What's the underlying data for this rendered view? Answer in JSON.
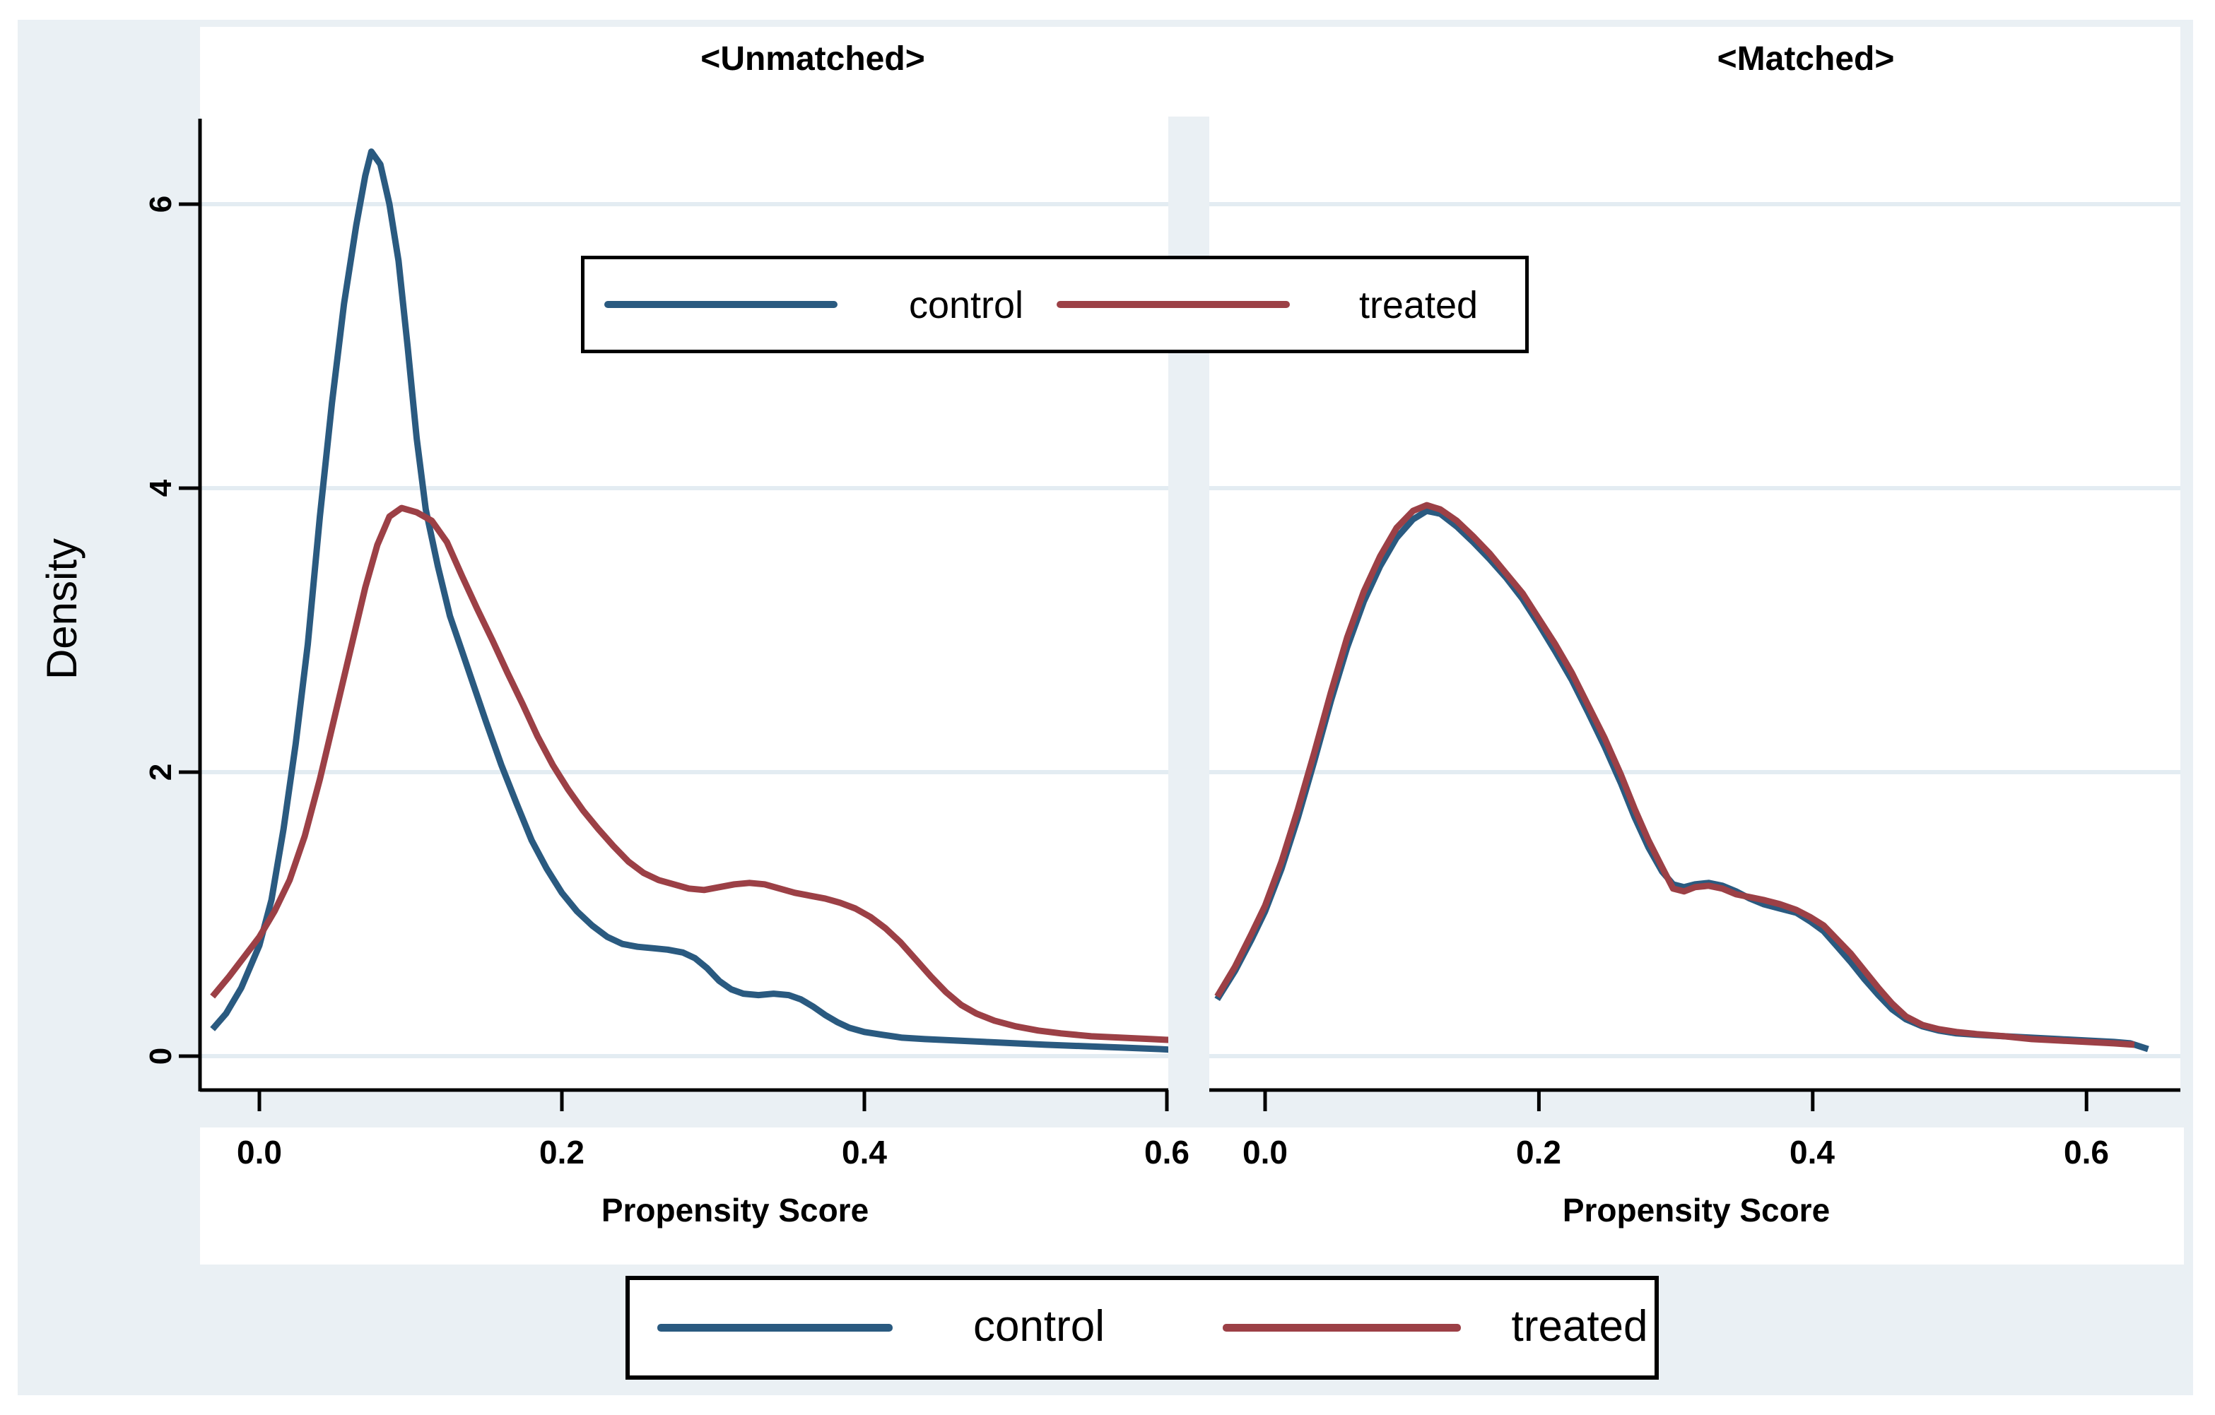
{
  "figure": {
    "ylabel": "Density",
    "y_ticks": [
      "0",
      "2",
      "4",
      "6"
    ],
    "x_ticks_left": [
      "0.0",
      "0.2",
      "0.4",
      "0.6"
    ],
    "x_ticks_right": [
      "0.0",
      "0.2",
      "0.4",
      "0.6"
    ],
    "colors": {
      "background": "#eaf0f4",
      "plot_background": "#ffffff",
      "gridline": "#e3ecf2",
      "axis": "#000000",
      "control": "#2a5a80",
      "treated": "#9c4046"
    },
    "legend_inner": {
      "control_label": "control",
      "treated_label": "treated"
    },
    "legend_bottom": {
      "control_label": "control",
      "treated_label": "treated"
    }
  },
  "chart_data": [
    {
      "type": "line",
      "title": "<Unmatched>",
      "xlabel": "Propensity Score",
      "ylabel": "Density",
      "xlim": [
        -0.04,
        0.6
      ],
      "ylim": [
        0,
        6.6
      ],
      "x_ticks": [
        0.0,
        0.2,
        0.4,
        0.6
      ],
      "y_ticks": [
        0,
        2,
        4,
        6
      ],
      "grid": true,
      "legend_position": "inner-top and bottom-center",
      "series": [
        {
          "name": "control",
          "color": "#2a5a80",
          "points": [
            [
              -0.031,
              0.19
            ],
            [
              -0.022,
              0.3
            ],
            [
              -0.012,
              0.48
            ],
            [
              0,
              0.78
            ],
            [
              0.008,
              1.1
            ],
            [
              0.016,
              1.6
            ],
            [
              0.024,
              2.2
            ],
            [
              0.032,
              2.9
            ],
            [
              0.04,
              3.8
            ],
            [
              0.048,
              4.6
            ],
            [
              0.056,
              5.3
            ],
            [
              0.064,
              5.85
            ],
            [
              0.07,
              6.2
            ],
            [
              0.074,
              6.37
            ],
            [
              0.08,
              6.28
            ],
            [
              0.086,
              6.0
            ],
            [
              0.092,
              5.6
            ],
            [
              0.098,
              5.0
            ],
            [
              0.104,
              4.35
            ],
            [
              0.11,
              3.85
            ],
            [
              0.118,
              3.45
            ],
            [
              0.126,
              3.1
            ],
            [
              0.134,
              2.85
            ],
            [
              0.142,
              2.6
            ],
            [
              0.15,
              2.35
            ],
            [
              0.16,
              2.05
            ],
            [
              0.17,
              1.78
            ],
            [
              0.18,
              1.52
            ],
            [
              0.19,
              1.32
            ],
            [
              0.2,
              1.15
            ],
            [
              0.21,
              1.02
            ],
            [
              0.22,
              0.92
            ],
            [
              0.23,
              0.84
            ],
            [
              0.24,
              0.79
            ],
            [
              0.25,
              0.77
            ],
            [
              0.26,
              0.76
            ],
            [
              0.27,
              0.75
            ],
            [
              0.28,
              0.73
            ],
            [
              0.288,
              0.69
            ],
            [
              0.296,
              0.62
            ],
            [
              0.304,
              0.53
            ],
            [
              0.312,
              0.47
            ],
            [
              0.32,
              0.44
            ],
            [
              0.33,
              0.43
            ],
            [
              0.34,
              0.44
            ],
            [
              0.35,
              0.43
            ],
            [
              0.358,
              0.4
            ],
            [
              0.366,
              0.35
            ],
            [
              0.374,
              0.29
            ],
            [
              0.382,
              0.24
            ],
            [
              0.39,
              0.2
            ],
            [
              0.4,
              0.17
            ],
            [
              0.412,
              0.15
            ],
            [
              0.425,
              0.13
            ],
            [
              0.44,
              0.12
            ],
            [
              0.46,
              0.11
            ],
            [
              0.48,
              0.1
            ],
            [
              0.5,
              0.09
            ],
            [
              0.52,
              0.08
            ],
            [
              0.545,
              0.07
            ],
            [
              0.57,
              0.06
            ],
            [
              0.595,
              0.05
            ],
            [
              0.612,
              0.04
            ]
          ]
        },
        {
          "name": "treated",
          "color": "#9c4046",
          "points": [
            [
              -0.031,
              0.42
            ],
            [
              -0.02,
              0.56
            ],
            [
              -0.01,
              0.7
            ],
            [
              0,
              0.84
            ],
            [
              0.01,
              1.02
            ],
            [
              0.02,
              1.24
            ],
            [
              0.03,
              1.55
            ],
            [
              0.04,
              1.95
            ],
            [
              0.05,
              2.4
            ],
            [
              0.06,
              2.85
            ],
            [
              0.07,
              3.3
            ],
            [
              0.078,
              3.6
            ],
            [
              0.086,
              3.8
            ],
            [
              0.094,
              3.86
            ],
            [
              0.104,
              3.83
            ],
            [
              0.114,
              3.77
            ],
            [
              0.124,
              3.62
            ],
            [
              0.134,
              3.38
            ],
            [
              0.144,
              3.15
            ],
            [
              0.154,
              2.93
            ],
            [
              0.164,
              2.7
            ],
            [
              0.174,
              2.48
            ],
            [
              0.184,
              2.25
            ],
            [
              0.194,
              2.05
            ],
            [
              0.204,
              1.88
            ],
            [
              0.214,
              1.73
            ],
            [
              0.224,
              1.6
            ],
            [
              0.234,
              1.48
            ],
            [
              0.244,
              1.37
            ],
            [
              0.254,
              1.29
            ],
            [
              0.264,
              1.24
            ],
            [
              0.274,
              1.21
            ],
            [
              0.284,
              1.18
            ],
            [
              0.294,
              1.17
            ],
            [
              0.304,
              1.19
            ],
            [
              0.314,
              1.21
            ],
            [
              0.324,
              1.22
            ],
            [
              0.334,
              1.21
            ],
            [
              0.344,
              1.18
            ],
            [
              0.354,
              1.15
            ],
            [
              0.364,
              1.13
            ],
            [
              0.374,
              1.11
            ],
            [
              0.384,
              1.08
            ],
            [
              0.394,
              1.04
            ],
            [
              0.404,
              0.98
            ],
            [
              0.414,
              0.9
            ],
            [
              0.424,
              0.8
            ],
            [
              0.434,
              0.68
            ],
            [
              0.444,
              0.56
            ],
            [
              0.454,
              0.45
            ],
            [
              0.464,
              0.36
            ],
            [
              0.474,
              0.3
            ],
            [
              0.486,
              0.25
            ],
            [
              0.5,
              0.21
            ],
            [
              0.515,
              0.18
            ],
            [
              0.53,
              0.16
            ],
            [
              0.55,
              0.14
            ],
            [
              0.57,
              0.13
            ],
            [
              0.59,
              0.12
            ],
            [
              0.61,
              0.11
            ],
            [
              0.62,
              0.1
            ]
          ]
        }
      ]
    },
    {
      "type": "line",
      "title": "<Matched>",
      "xlabel": "Propensity Score",
      "ylabel": "Density",
      "xlim": [
        -0.04,
        0.67
      ],
      "ylim": [
        0,
        6.6
      ],
      "x_ticks": [
        0.0,
        0.2,
        0.4,
        0.6
      ],
      "y_ticks": [
        0,
        2,
        4,
        6
      ],
      "grid": true,
      "legend_position": "bottom-center",
      "series": [
        {
          "name": "control",
          "color": "#2a5a80",
          "points": [
            [
              -0.035,
              0.4
            ],
            [
              -0.022,
              0.6
            ],
            [
              -0.01,
              0.82
            ],
            [
              0,
              1.02
            ],
            [
              0.012,
              1.32
            ],
            [
              0.024,
              1.68
            ],
            [
              0.036,
              2.08
            ],
            [
              0.048,
              2.5
            ],
            [
              0.06,
              2.88
            ],
            [
              0.072,
              3.2
            ],
            [
              0.084,
              3.45
            ],
            [
              0.096,
              3.65
            ],
            [
              0.108,
              3.78
            ],
            [
              0.118,
              3.84
            ],
            [
              0.128,
              3.82
            ],
            [
              0.14,
              3.73
            ],
            [
              0.152,
              3.62
            ],
            [
              0.164,
              3.5
            ],
            [
              0.176,
              3.37
            ],
            [
              0.188,
              3.22
            ],
            [
              0.2,
              3.04
            ],
            [
              0.212,
              2.85
            ],
            [
              0.224,
              2.65
            ],
            [
              0.236,
              2.42
            ],
            [
              0.248,
              2.18
            ],
            [
              0.26,
              1.92
            ],
            [
              0.27,
              1.68
            ],
            [
              0.28,
              1.47
            ],
            [
              0.29,
              1.3
            ],
            [
              0.298,
              1.21
            ],
            [
              0.306,
              1.19
            ],
            [
              0.314,
              1.21
            ],
            [
              0.324,
              1.22
            ],
            [
              0.334,
              1.2
            ],
            [
              0.344,
              1.16
            ],
            [
              0.354,
              1.11
            ],
            [
              0.364,
              1.07
            ],
            [
              0.376,
              1.04
            ],
            [
              0.388,
              1.01
            ],
            [
              0.398,
              0.95
            ],
            [
              0.408,
              0.88
            ],
            [
              0.418,
              0.77
            ],
            [
              0.428,
              0.66
            ],
            [
              0.438,
              0.54
            ],
            [
              0.448,
              0.43
            ],
            [
              0.458,
              0.33
            ],
            [
              0.468,
              0.26
            ],
            [
              0.48,
              0.21
            ],
            [
              0.492,
              0.18
            ],
            [
              0.505,
              0.16
            ],
            [
              0.52,
              0.15
            ],
            [
              0.54,
              0.14
            ],
            [
              0.56,
              0.13
            ],
            [
              0.58,
              0.12
            ],
            [
              0.6,
              0.11
            ],
            [
              0.62,
              0.1
            ],
            [
              0.632,
              0.09
            ],
            [
              0.645,
              0.05
            ]
          ]
        },
        {
          "name": "treated",
          "color": "#9c4046",
          "points": [
            [
              -0.035,
              0.42
            ],
            [
              -0.022,
              0.63
            ],
            [
              -0.01,
              0.86
            ],
            [
              0,
              1.06
            ],
            [
              0.012,
              1.37
            ],
            [
              0.024,
              1.74
            ],
            [
              0.036,
              2.14
            ],
            [
              0.048,
              2.56
            ],
            [
              0.06,
              2.95
            ],
            [
              0.072,
              3.27
            ],
            [
              0.084,
              3.52
            ],
            [
              0.096,
              3.72
            ],
            [
              0.108,
              3.84
            ],
            [
              0.118,
              3.88
            ],
            [
              0.128,
              3.85
            ],
            [
              0.14,
              3.77
            ],
            [
              0.152,
              3.66
            ],
            [
              0.164,
              3.54
            ],
            [
              0.176,
              3.4
            ],
            [
              0.188,
              3.26
            ],
            [
              0.2,
              3.08
            ],
            [
              0.212,
              2.9
            ],
            [
              0.224,
              2.7
            ],
            [
              0.236,
              2.47
            ],
            [
              0.248,
              2.24
            ],
            [
              0.26,
              1.98
            ],
            [
              0.27,
              1.74
            ],
            [
              0.28,
              1.52
            ],
            [
              0.29,
              1.33
            ],
            [
              0.298,
              1.18
            ],
            [
              0.306,
              1.16
            ],
            [
              0.314,
              1.19
            ],
            [
              0.324,
              1.2
            ],
            [
              0.334,
              1.18
            ],
            [
              0.344,
              1.14
            ],
            [
              0.354,
              1.12
            ],
            [
              0.364,
              1.1
            ],
            [
              0.376,
              1.07
            ],
            [
              0.388,
              1.03
            ],
            [
              0.398,
              0.98
            ],
            [
              0.408,
              0.92
            ],
            [
              0.418,
              0.82
            ],
            [
              0.428,
              0.72
            ],
            [
              0.438,
              0.6
            ],
            [
              0.448,
              0.48
            ],
            [
              0.458,
              0.37
            ],
            [
              0.468,
              0.28
            ],
            [
              0.48,
              0.22
            ],
            [
              0.492,
              0.19
            ],
            [
              0.505,
              0.17
            ],
            [
              0.52,
              0.155
            ],
            [
              0.54,
              0.14
            ],
            [
              0.56,
              0.12
            ],
            [
              0.58,
              0.11
            ],
            [
              0.6,
              0.1
            ],
            [
              0.62,
              0.09
            ],
            [
              0.635,
              0.08
            ]
          ]
        }
      ]
    }
  ]
}
